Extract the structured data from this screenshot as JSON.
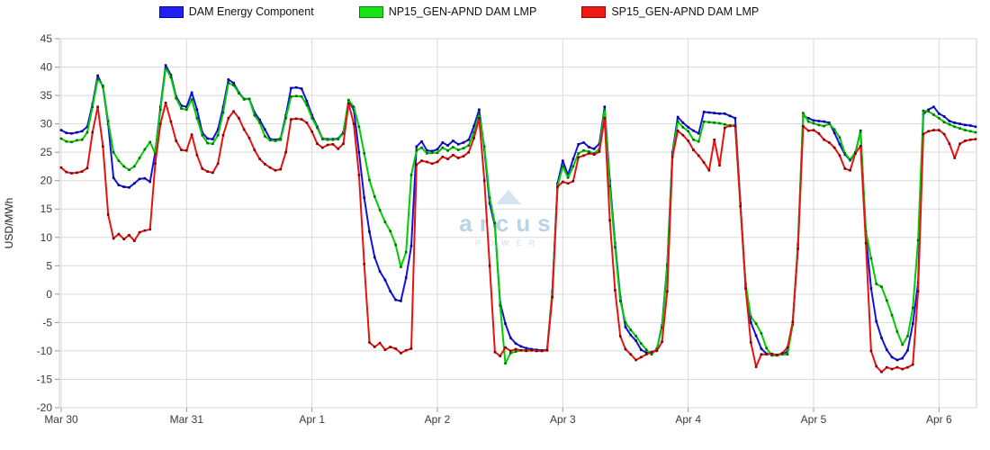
{
  "legend": {
    "items": [
      {
        "label": "DAM Energy Component",
        "fill": "#2020f0",
        "border": "#0000a8"
      },
      {
        "label": "NP15_GEN-APND DAM LMP",
        "fill": "#17e317",
        "border": "#008800"
      },
      {
        "label": "SP15_GEN-APND DAM LMP",
        "fill": "#f01717",
        "border": "#990000"
      }
    ]
  },
  "watermark": {
    "brand": "arcus",
    "sub": "POWER"
  },
  "axes": {
    "ylabel": "USD/MWh",
    "y_ticks": [
      45,
      40,
      35,
      30,
      25,
      20,
      15,
      10,
      5,
      0,
      -5,
      -10,
      -15,
      -20
    ],
    "x_tick_labels": [
      "Mar 30",
      "Mar 31",
      "Apr 1",
      "Apr 2",
      "Apr 3",
      "Apr 4",
      "Apr 5",
      "Apr 6"
    ]
  },
  "chart_data": {
    "type": "line",
    "title": "",
    "xlabel": "",
    "ylabel": "USD/MWh",
    "ylim": [
      -20,
      45
    ],
    "grid": true,
    "legend_position": "top-center",
    "x_unit": "hours since Mar 30 00:00",
    "x_tick_labels": [
      "Mar 30",
      "Mar 31",
      "Apr 1",
      "Apr 2",
      "Apr 3",
      "Apr 4",
      "Apr 5",
      "Apr 6"
    ],
    "x_ticks_hours": [
      0,
      24,
      48,
      72,
      96,
      120,
      144,
      168
    ],
    "y_ticks": [
      45,
      40,
      35,
      30,
      25,
      20,
      15,
      10,
      5,
      0,
      -5,
      -10,
      -15,
      -20
    ],
    "series": [
      {
        "name": "DAM Energy Component",
        "color": "#1212e8",
        "marker_color": "#000085",
        "values": [
          28.9,
          28.4,
          28.3,
          28.5,
          28.7,
          29.5,
          33.5,
          38.5,
          36.5,
          30.0,
          20.5,
          19.2,
          18.9,
          18.8,
          19.5,
          20.3,
          20.4,
          19.8,
          25.0,
          33.0,
          40.3,
          38.6,
          34.8,
          33.2,
          33.0,
          35.5,
          32.5,
          28.5,
          27.4,
          27.3,
          29.0,
          33.0,
          37.8,
          37.2,
          35.5,
          34.4,
          34.4,
          32.0,
          30.7,
          29.0,
          27.3,
          27.2,
          27.4,
          31.5,
          36.3,
          36.4,
          36.2,
          34.0,
          31.5,
          29.5,
          27.4,
          27.3,
          27.3,
          27.4,
          28.5,
          34.0,
          32.5,
          25.0,
          17.0,
          11.0,
          6.5,
          4.0,
          2.5,
          0.5,
          -1.0,
          -1.2,
          2.9,
          8.5,
          26.0,
          26.9,
          25.3,
          25.2,
          25.5,
          26.7,
          26.2,
          27.0,
          26.4,
          26.7,
          27.2,
          29.6,
          32.5,
          25.5,
          16.0,
          12.0,
          -1.5,
          -5.2,
          -7.7,
          -8.7,
          -9.2,
          -9.5,
          -9.7,
          -9.8,
          -9.9,
          -9.8,
          0.5,
          19.5,
          23.5,
          21.0,
          23.8,
          26.4,
          26.7,
          25.9,
          25.6,
          26.5,
          33.0,
          20.0,
          9.0,
          -0.5,
          -5.8,
          -7.2,
          -8.2,
          -9.8,
          -10.3,
          -10.2,
          -9.8,
          -5.5,
          5.3,
          25.0,
          31.2,
          30.2,
          29.4,
          28.8,
          28.3,
          32.1,
          32.0,
          31.9,
          31.8,
          31.8,
          31.4,
          31.0,
          16.0,
          1.5,
          -5.0,
          -7.3,
          -9.6,
          -10.5,
          -10.6,
          -10.7,
          -10.6,
          -10.1,
          -5.0,
          8.5,
          31.4,
          31.0,
          30.6,
          30.5,
          30.4,
          30.2,
          28.4,
          26.4,
          24.6,
          23.6,
          24.8,
          28.8,
          10.5,
          1.0,
          -4.8,
          -7.7,
          -9.8,
          -11.1,
          -11.6,
          -11.3,
          -9.9,
          -5.2,
          2.0,
          31.7,
          32.5,
          33.0,
          31.8,
          31.3,
          30.5,
          30.2,
          30.0,
          29.8,
          29.7,
          29.5
        ]
      },
      {
        "name": "NP15_GEN-APND DAM LMP",
        "color": "#00ce00",
        "marker_color": "#006e00",
        "values": [
          27.4,
          26.9,
          26.8,
          27.1,
          27.2,
          28.5,
          33.0,
          37.9,
          36.7,
          30.5,
          25.0,
          23.5,
          22.5,
          21.9,
          22.5,
          24.0,
          25.5,
          26.8,
          24.8,
          32.5,
          39.8,
          38.2,
          34.5,
          32.7,
          32.5,
          34.3,
          31.0,
          28.0,
          26.6,
          26.5,
          28.0,
          32.0,
          37.2,
          36.8,
          35.4,
          34.3,
          34.4,
          31.5,
          30.2,
          27.8,
          27.1,
          27.0,
          27.2,
          31.0,
          34.8,
          34.9,
          34.8,
          33.3,
          31.0,
          29.3,
          27.3,
          27.2,
          27.2,
          27.3,
          28.3,
          34.2,
          33.0,
          29.5,
          24.8,
          20.1,
          17.2,
          14.8,
          12.7,
          11.1,
          8.7,
          4.8,
          7.4,
          21.0,
          25.3,
          25.8,
          24.8,
          24.9,
          24.9,
          25.8,
          25.3,
          25.9,
          25.4,
          25.7,
          26.2,
          28.5,
          31.7,
          26.0,
          17.0,
          12.5,
          -2.0,
          -12.2,
          -10.4,
          -10.1,
          -9.9,
          -9.8,
          -9.9,
          -10.0,
          -10.0,
          -9.9,
          0.3,
          19.0,
          22.5,
          20.5,
          22.5,
          24.8,
          25.3,
          25.1,
          24.8,
          25.6,
          32.5,
          19.0,
          8.3,
          -1.2,
          -5.0,
          -6.3,
          -7.4,
          -8.7,
          -9.8,
          -10.6,
          -9.6,
          -5.9,
          5.0,
          24.6,
          30.4,
          29.4,
          28.7,
          27.2,
          26.9,
          30.4,
          30.3,
          30.2,
          30.1,
          29.9,
          29.6,
          29.8,
          15.5,
          1.8,
          -4.0,
          -5.2,
          -6.9,
          -9.5,
          -10.8,
          -10.8,
          -10.6,
          -10.6,
          -5.4,
          8.8,
          31.9,
          30.4,
          30.1,
          29.8,
          29.6,
          30.0,
          29.0,
          27.6,
          24.8,
          23.7,
          25.0,
          28.6,
          11.1,
          6.3,
          1.8,
          1.3,
          -1.1,
          -3.7,
          -6.6,
          -8.9,
          -7.4,
          -2.4,
          9.5,
          32.3,
          32.2,
          31.6,
          31.0,
          30.3,
          29.9,
          29.5,
          29.2,
          28.9,
          28.7,
          28.5
        ]
      },
      {
        "name": "SP15_GEN-APND DAM LMP",
        "color": "#e81212",
        "marker_color": "#7e0000",
        "values": [
          22.3,
          21.5,
          21.3,
          21.4,
          21.6,
          22.2,
          28.5,
          33.0,
          26.0,
          14.0,
          9.8,
          10.6,
          9.7,
          10.4,
          9.4,
          10.9,
          11.2,
          11.4,
          23.0,
          30.0,
          33.7,
          30.4,
          27.0,
          25.4,
          25.3,
          28.1,
          24.5,
          22.1,
          21.6,
          21.4,
          23.0,
          28.0,
          31.0,
          32.2,
          31.0,
          29.0,
          27.5,
          25.4,
          23.8,
          22.9,
          22.3,
          21.8,
          22.0,
          25.0,
          30.8,
          30.9,
          30.8,
          30.2,
          28.6,
          26.5,
          25.8,
          26.3,
          26.4,
          25.6,
          26.5,
          33.6,
          30.0,
          21.0,
          5.3,
          -8.5,
          -9.3,
          -8.6,
          -9.8,
          -9.3,
          -9.6,
          -10.4,
          -9.9,
          -9.6,
          22.8,
          23.5,
          23.3,
          23.0,
          23.3,
          24.2,
          23.8,
          24.5,
          24.0,
          24.3,
          25.0,
          27.5,
          31.0,
          20.0,
          5.0,
          -10.2,
          -10.9,
          -9.4,
          -10.0,
          -9.7,
          -9.9,
          -10.0,
          -9.9,
          -10.0,
          -10.0,
          -9.9,
          -0.5,
          18.9,
          19.8,
          19.5,
          19.9,
          24.1,
          24.4,
          24.8,
          24.6,
          25.1,
          31.0,
          13.0,
          0.7,
          -7.4,
          -9.7,
          -10.6,
          -11.6,
          -11.1,
          -10.6,
          -10.2,
          -10.0,
          -8.4,
          0.5,
          24.2,
          28.8,
          28.0,
          27.0,
          25.4,
          24.4,
          23.2,
          21.8,
          27.2,
          22.7,
          29.3,
          29.7,
          29.6,
          15.5,
          1.0,
          -8.5,
          -12.8,
          -10.6,
          -10.6,
          -10.5,
          -10.7,
          -10.4,
          -9.4,
          -4.9,
          8.0,
          29.6,
          28.8,
          28.9,
          28.3,
          27.2,
          26.7,
          25.8,
          24.4,
          22.1,
          21.8,
          24.8,
          26.1,
          9.0,
          -10.0,
          -12.7,
          -13.7,
          -12.9,
          -13.2,
          -12.9,
          -13.2,
          -12.9,
          -12.4,
          0.5,
          28.2,
          28.7,
          28.9,
          28.9,
          28.2,
          26.5,
          24.0,
          26.5,
          27.0,
          27.2,
          27.3
        ]
      }
    ]
  },
  "style": {
    "grid_color": "#d9d9d9",
    "border_color": "#cccccc",
    "tick_color": "#999999",
    "tick_label_color": "#3a3a3a"
  }
}
